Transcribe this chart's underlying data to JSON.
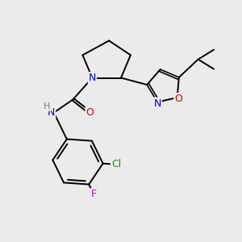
{
  "bg_color": "#ebebeb",
  "bond_color": "#000000",
  "atom_colors": {
    "N": "#0000cc",
    "O": "#cc0000",
    "Cl": "#228822",
    "F": "#cc00cc",
    "H": "#777777",
    "C": "#000000"
  },
  "font_size": 9,
  "bond_width": 1.4
}
